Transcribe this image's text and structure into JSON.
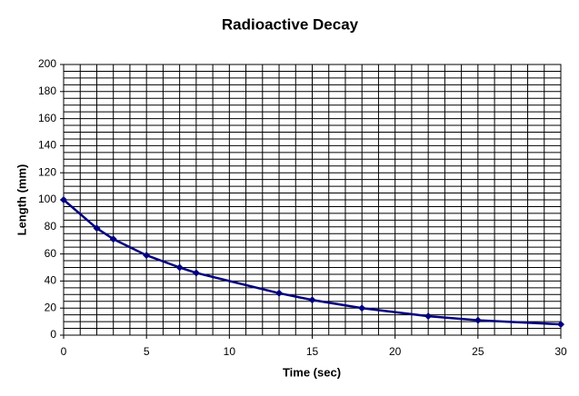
{
  "chart_data": {
    "type": "line",
    "title": "Radioactive Decay",
    "x_label": "Time (sec)",
    "y_label": "Length (mm)",
    "x": [
      0,
      2,
      3,
      5,
      7,
      8,
      13,
      15,
      18,
      22,
      25,
      30
    ],
    "series": [
      {
        "color": "#000080",
        "values": [
          100,
          79,
          71,
          59,
          50,
          46,
          31,
          26,
          20,
          14,
          11,
          8
        ]
      }
    ],
    "xlim": [
      0,
      30
    ],
    "xticks": [
      0,
      5,
      10,
      15,
      20,
      25,
      30
    ],
    "ylim": [
      0,
      200
    ],
    "yticks": [
      0,
      20,
      40,
      60,
      80,
      100,
      120,
      140,
      160,
      180,
      200
    ],
    "grid": true,
    "minor_grid": true,
    "marker": "diamond"
  }
}
